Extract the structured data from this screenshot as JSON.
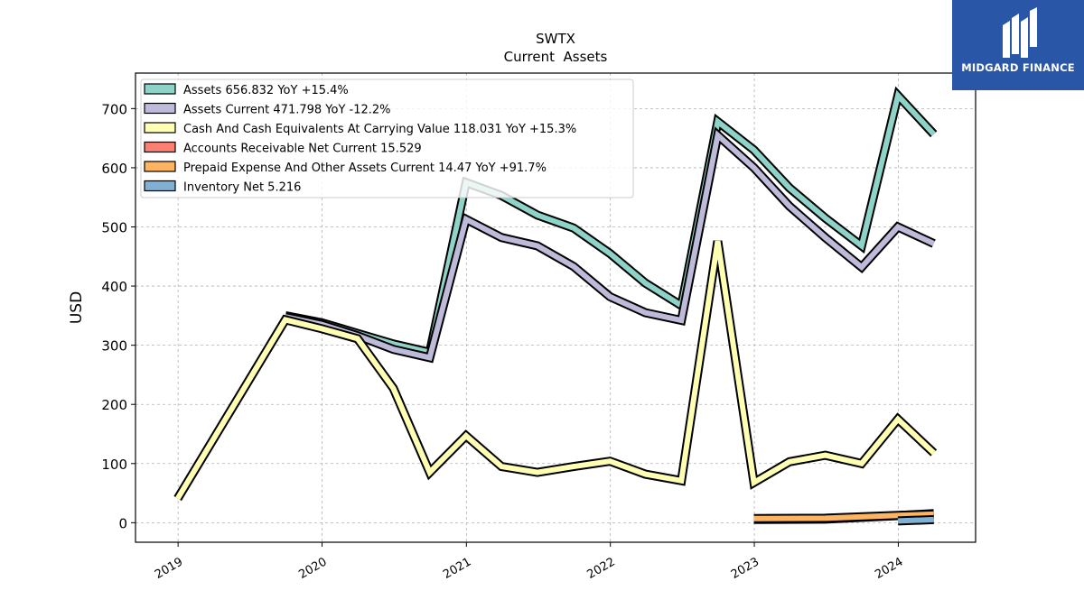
{
  "header": {
    "title": "SWTX",
    "subtitle": "Current  Assets"
  },
  "logo": {
    "text": "MIDGARD FINANCE",
    "background": "#2a56a8"
  },
  "chart_data": {
    "type": "line",
    "title": "SWTX",
    "subtitle": "Current  Assets",
    "xlabel": "",
    "ylabel": "USD",
    "xlim": [
      "2018-09-15",
      "2024-07-15"
    ],
    "ylim": [
      -33,
      760
    ],
    "xticks": [
      "2019",
      "2020",
      "2021",
      "2022",
      "2023",
      "2024"
    ],
    "yticks": [
      0,
      100,
      200,
      300,
      400,
      500,
      600,
      700
    ],
    "grid": true,
    "legend_position": "top-left",
    "series": [
      {
        "name": "Assets",
        "legend": "Assets  656.832 YoY +15.4%",
        "color": "#8dd3c7",
        "points": [
          [
            "2019-09-30",
            350
          ],
          [
            "2019-12-31",
            338
          ],
          [
            "2020-03-31",
            320
          ],
          [
            "2020-06-30",
            302
          ],
          [
            "2020-09-30",
            288
          ],
          [
            "2020-12-31",
            575
          ],
          [
            "2021-03-31",
            553
          ],
          [
            "2021-06-30",
            520
          ],
          [
            "2021-09-30",
            498
          ],
          [
            "2021-12-31",
            455
          ],
          [
            "2022-03-31",
            405
          ],
          [
            "2022-06-30",
            367
          ],
          [
            "2022-09-30",
            678
          ],
          [
            "2022-12-31",
            630
          ],
          [
            "2023-03-31",
            566
          ],
          [
            "2023-06-30",
            515
          ],
          [
            "2023-09-30",
            468
          ],
          [
            "2023-12-31",
            722
          ],
          [
            "2024-03-31",
            656.832
          ]
        ]
      },
      {
        "name": "Assets Current",
        "legend": "Assets Current  471.798 YoY -12.2%",
        "color": "#bebada",
        "points": [
          [
            "2019-09-30",
            348
          ],
          [
            "2019-12-31",
            335
          ],
          [
            "2020-03-31",
            316
          ],
          [
            "2020-06-30",
            293
          ],
          [
            "2020-09-30",
            279
          ],
          [
            "2020-12-31",
            513
          ],
          [
            "2021-03-31",
            482
          ],
          [
            "2021-06-30",
            468
          ],
          [
            "2021-09-30",
            433
          ],
          [
            "2021-12-31",
            382
          ],
          [
            "2022-03-31",
            355
          ],
          [
            "2022-06-30",
            342
          ],
          [
            "2022-09-30",
            655
          ],
          [
            "2022-12-31",
            600
          ],
          [
            "2023-03-31",
            535
          ],
          [
            "2023-06-30",
            482
          ],
          [
            "2023-09-30",
            432
          ],
          [
            "2023-12-31",
            500
          ],
          [
            "2024-03-31",
            471.798
          ]
        ]
      },
      {
        "name": "Cash And Cash Equivalents At Carrying Value",
        "legend": "Cash And Cash Equivalents At Carrying Value  118.031 YoY +15.3%",
        "color": "#ffffb3",
        "points": [
          [
            "2018-12-31",
            41
          ],
          [
            "2019-09-30",
            343
          ],
          [
            "2019-12-31",
            328
          ],
          [
            "2020-03-31",
            311
          ],
          [
            "2020-06-30",
            227
          ],
          [
            "2020-09-30",
            85
          ],
          [
            "2020-12-31",
            147
          ],
          [
            "2021-03-31",
            95
          ],
          [
            "2021-06-30",
            85
          ],
          [
            "2021-09-30",
            95
          ],
          [
            "2021-12-31",
            104
          ],
          [
            "2022-03-31",
            82
          ],
          [
            "2022-06-30",
            71
          ],
          [
            "2022-09-30",
            476
          ],
          [
            "2022-12-31",
            68
          ],
          [
            "2023-03-31",
            103
          ],
          [
            "2023-06-30",
            114
          ],
          [
            "2023-09-30",
            100
          ],
          [
            "2023-12-31",
            175
          ],
          [
            "2024-03-31",
            118.031
          ]
        ]
      },
      {
        "name": "Accounts Receivable Net Current",
        "legend": "Accounts Receivable Net Current  15.529",
        "color": "#fb8072",
        "points": [
          [
            "2022-12-31",
            5.5
          ],
          [
            "2023-06-30",
            6
          ],
          [
            "2023-12-31",
            12
          ],
          [
            "2024-03-31",
            15.529
          ]
        ]
      },
      {
        "name": "Prepaid Expense And Other Assets Current",
        "legend": "Prepaid Expense And Other Assets Current  14.47 YoY +91.7%",
        "color": "#fdb462",
        "points": [
          [
            "2022-12-31",
            7
          ],
          [
            "2023-06-30",
            7.5
          ],
          [
            "2023-12-31",
            12.5
          ],
          [
            "2024-03-31",
            14.47
          ]
        ]
      },
      {
        "name": "Inventory Net",
        "legend": "Inventory Net  5.216",
        "color": "#80b1d3",
        "points": [
          [
            "2023-12-31",
            3
          ],
          [
            "2024-03-31",
            5.216
          ]
        ]
      }
    ]
  }
}
